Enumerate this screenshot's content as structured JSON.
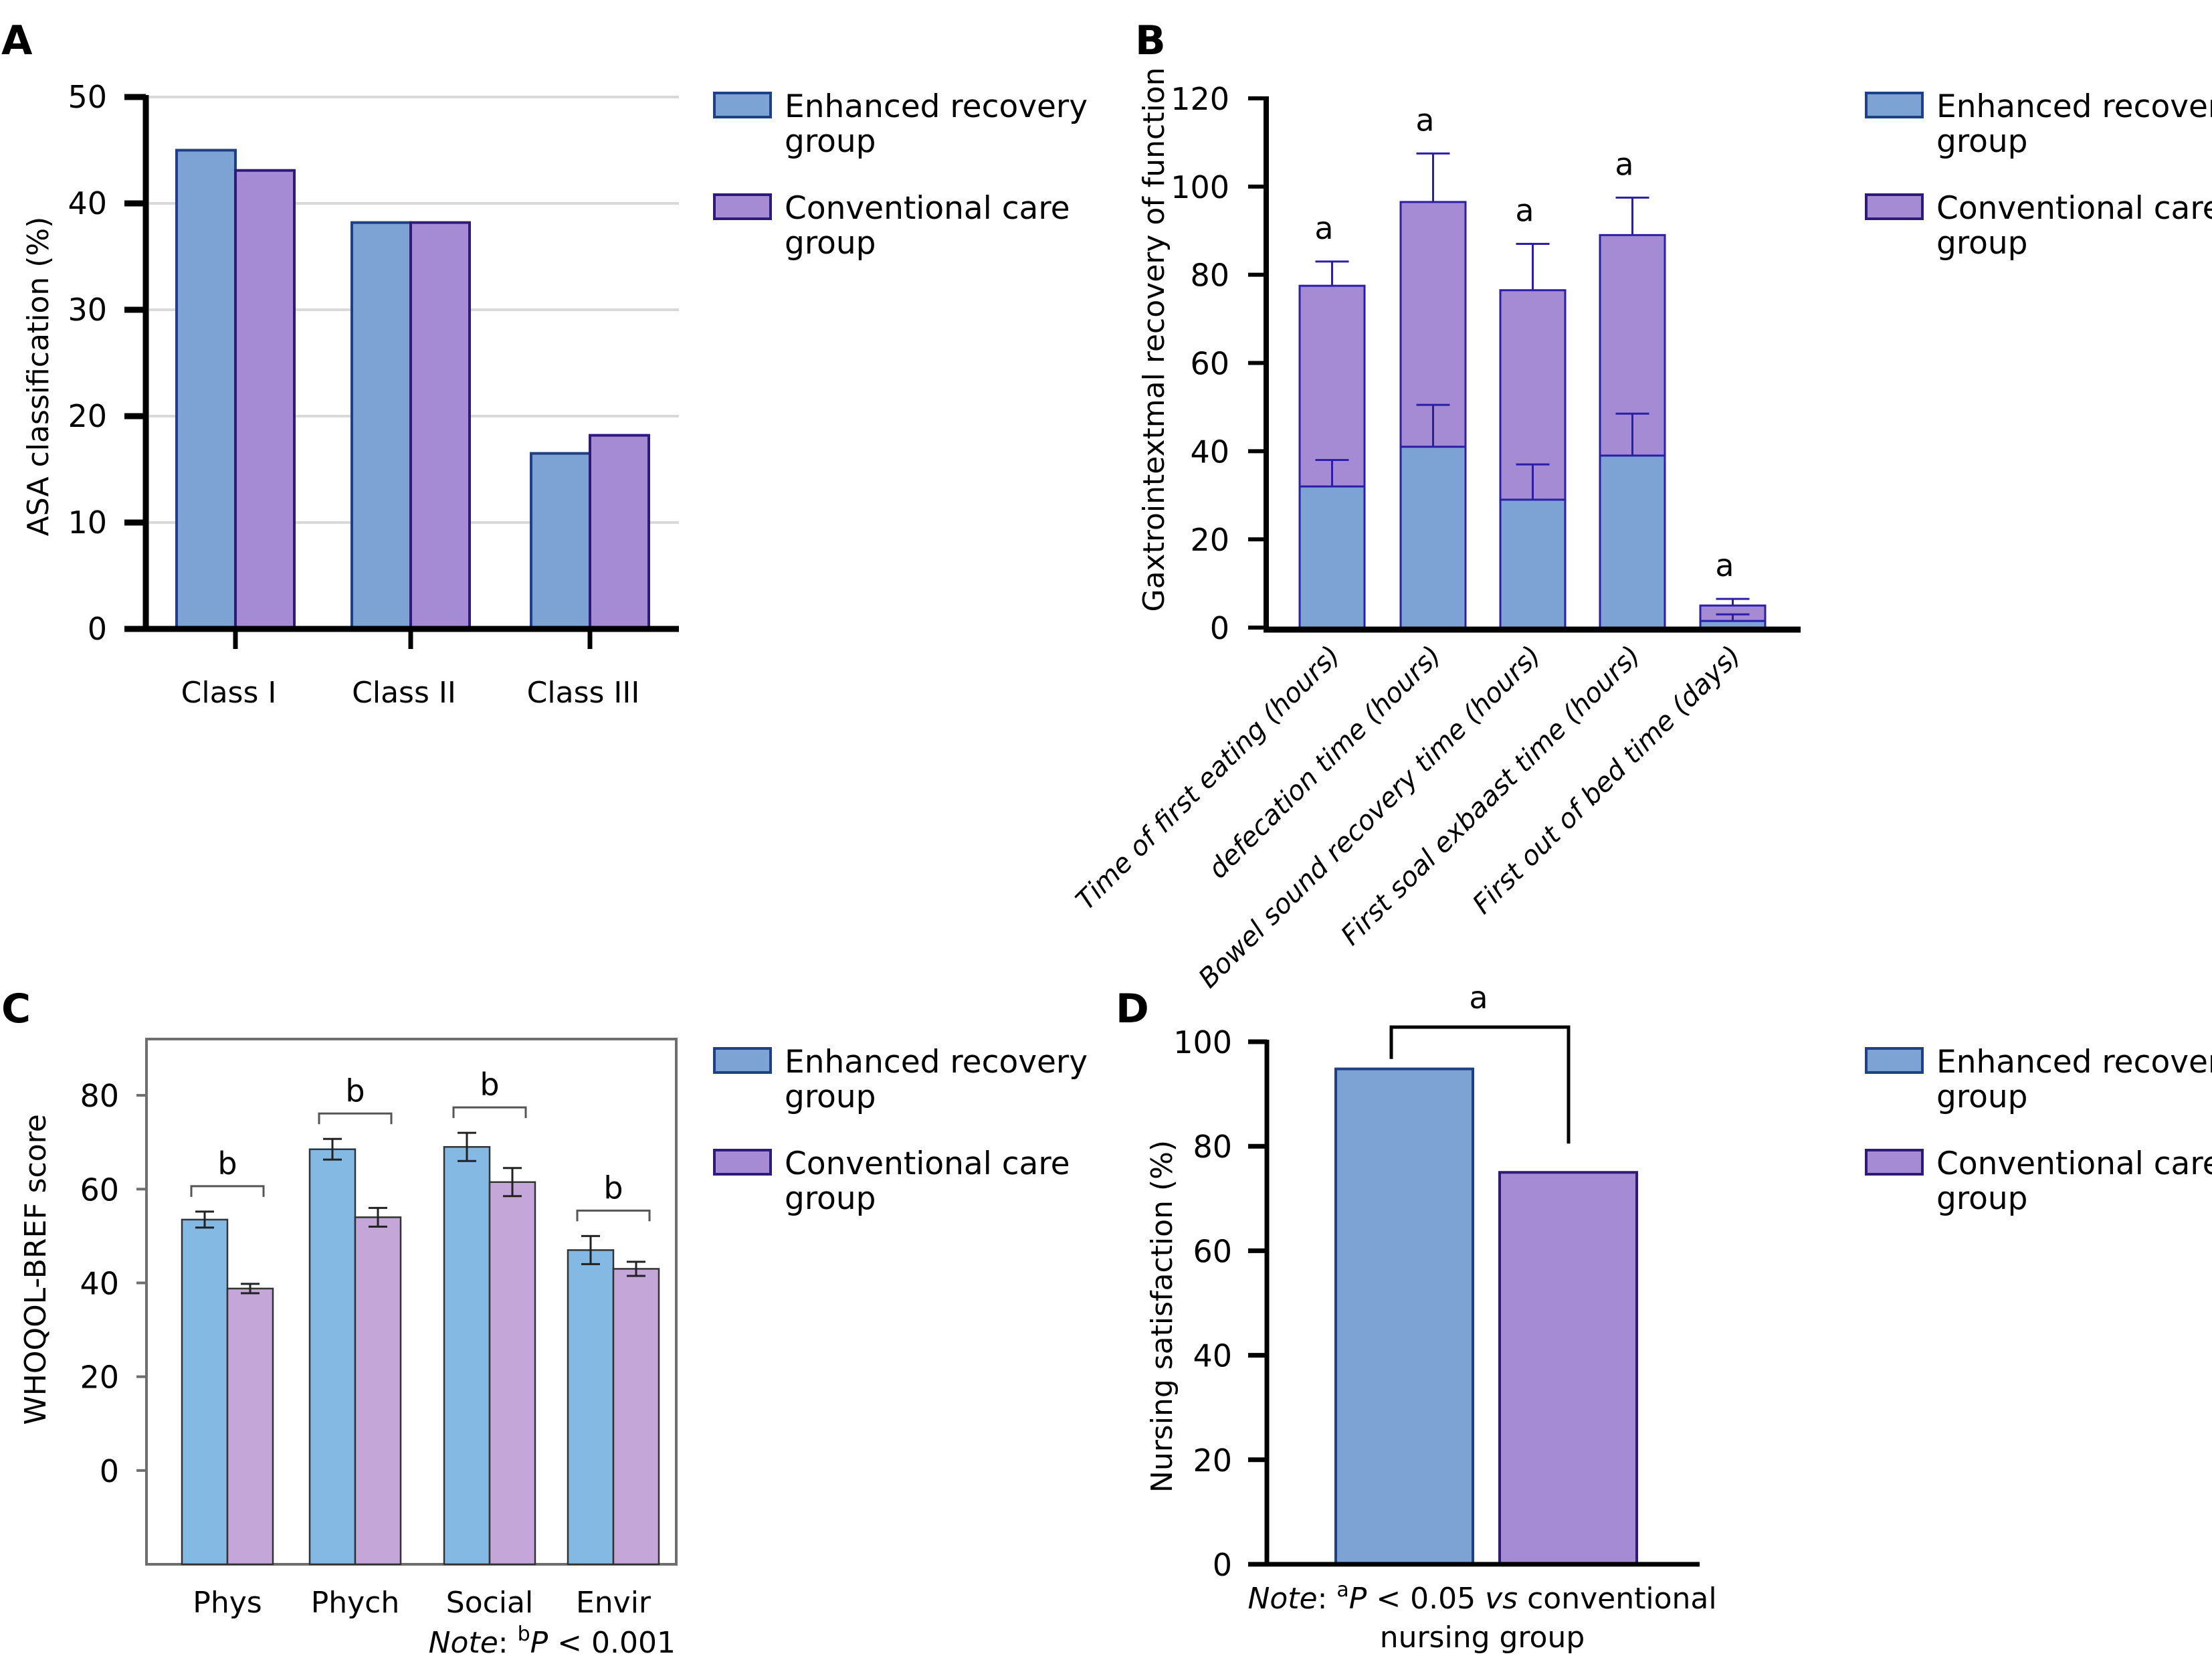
{
  "colors": {
    "enhanced_fill": "#7DA2D4",
    "enhanced_stroke": "#1F3F86",
    "conventional_fill": "#A58BD3",
    "conventional_stroke": "#2E1A78",
    "enhanced_fill_c": "#84B9E4",
    "conventional_fill_c": "#C4A6D9",
    "bar_stroke_c": "#333333",
    "gridline": "#D9D9D9",
    "axis": "#000000",
    "frame_c": "#6E6E6E"
  },
  "legend": {
    "entries": [
      {
        "key": "enhanced",
        "line1": "Enhanced recovery",
        "line2": "group"
      },
      {
        "key": "conventional",
        "line1": "Conventional care",
        "line2": "group"
      }
    ]
  },
  "chart_data": [
    {
      "panel": "A",
      "type": "bar",
      "title": "",
      "xlabel": "",
      "ylabel": "ASA classification (%)",
      "ylim": [
        0,
        50
      ],
      "yticks": [
        0,
        10,
        20,
        30,
        40,
        50
      ],
      "grid": true,
      "legend_position": "right",
      "categories": [
        "Class I",
        "Class II",
        "Class III"
      ],
      "series": [
        {
          "name": "Enhanced recovery group",
          "values": [
            45.0,
            38.2,
            16.5
          ]
        },
        {
          "name": "Conventional care group",
          "values": [
            43.1,
            38.2,
            18.2
          ]
        }
      ]
    },
    {
      "panel": "B",
      "type": "bar",
      "stacked": "overlaid",
      "title": "",
      "xlabel": "",
      "ylabel": "Gaxtrointextmal recovery of function",
      "ylim": [
        0,
        120
      ],
      "yticks": [
        0,
        20,
        40,
        60,
        80,
        100,
        120
      ],
      "grid": false,
      "legend_position": "right",
      "categories": [
        "Time of first eating (hours)",
        "defecation time (hours)",
        "Bowel sound recovery time (hours)",
        "First soal exbaast time (hours)",
        "First out of bed time (days)"
      ],
      "series": [
        {
          "name": "Enhanced recovery group",
          "values": [
            32,
            41,
            29,
            39,
            1.5
          ],
          "error": [
            6,
            9.5,
            8,
            9.5,
            1.5
          ]
        },
        {
          "name": "Conventional care group",
          "values": [
            77.5,
            96.5,
            76.5,
            89,
            5
          ],
          "error": [
            5.5,
            11,
            10.5,
            8.5,
            1.5
          ]
        }
      ],
      "annotations": [
        "a",
        "a",
        "a",
        "a",
        "a"
      ]
    },
    {
      "panel": "C",
      "type": "bar",
      "title": "",
      "xlabel": "",
      "ylabel": "WHOQOL-BREF score",
      "ylim": [
        -20,
        92
      ],
      "yticks": [
        0,
        20,
        40,
        60,
        80
      ],
      "grid": false,
      "legend_position": "right",
      "categories": [
        "Phys",
        "Phych",
        "Social",
        "Envir"
      ],
      "series": [
        {
          "name": "Enhanced recovery group",
          "values": [
            53.5,
            68.5,
            69,
            47
          ],
          "error": [
            1.7,
            2.2,
            3,
            3
          ]
        },
        {
          "name": "Conventional care group",
          "values": [
            38.8,
            54,
            61.5,
            43
          ],
          "error": [
            1,
            2,
            3,
            1.5
          ]
        }
      ],
      "annotations": [
        "b",
        "b",
        "b",
        "b"
      ],
      "note": {
        "prefix": "Note",
        "sup": "b",
        "rest_italic": "P",
        "rest": " < 0.001"
      }
    },
    {
      "panel": "D",
      "type": "bar",
      "title": "",
      "xlabel": "",
      "ylabel": "Nursing satisfaction (%)",
      "ylim": [
        0,
        100
      ],
      "yticks": [
        0,
        20,
        40,
        60,
        80,
        100
      ],
      "grid": false,
      "legend_position": "right",
      "categories": [
        "Enhanced recovery group",
        "Conventional care group"
      ],
      "series": [
        {
          "name": "Nursing satisfaction",
          "values": [
            94.8,
            75.0
          ]
        }
      ],
      "annotations": [
        "a"
      ],
      "note": {
        "prefix": "Note",
        "sup": "a",
        "italic_p": "P",
        "mid": " < 0.05 ",
        "vs": "vs",
        "tail": " conventional",
        "line2": "nursing group"
      }
    }
  ],
  "panel_letters": [
    "A",
    "B",
    "C",
    "D"
  ]
}
